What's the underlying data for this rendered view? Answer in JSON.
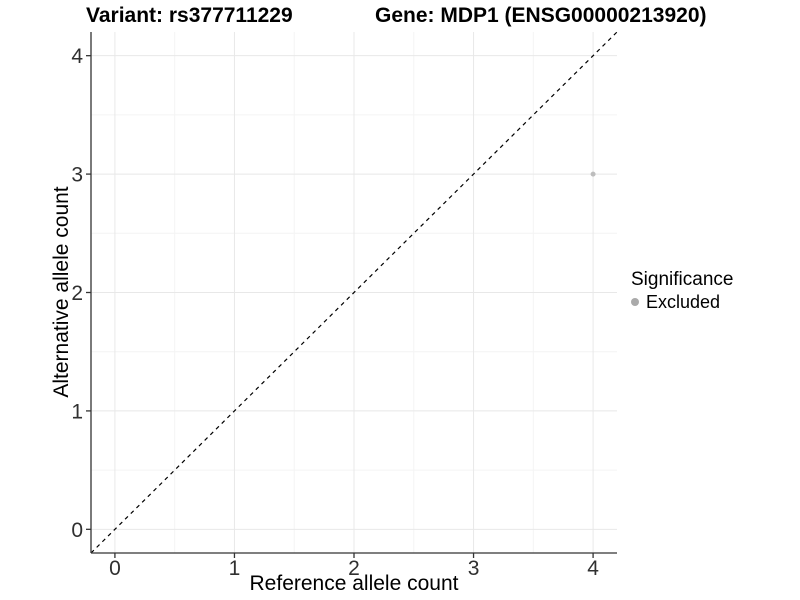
{
  "titles": {
    "left": "Variant: rs377711229",
    "right": "Gene: MDP1 (ENSG00000213920)"
  },
  "legend": {
    "title": "Significance",
    "items": [
      {
        "label": "Excluded",
        "color": "#aaaaaa"
      }
    ]
  },
  "colors": {
    "background": "#ffffff",
    "grid_major": "#e8e8e8",
    "grid_minor": "#f4f4f4",
    "axis_line": "#333333",
    "tick_mark": "#333333",
    "tick_text": "#303030",
    "point": "#bdbdbd",
    "reference_line": "#000000"
  },
  "chart_data": {
    "type": "scatter",
    "title": "Variant: rs377711229 — Gene: MDP1 (ENSG00000213920)",
    "xlabel": "Reference allele count",
    "ylabel": "Alternative allele count",
    "xlim": [
      -0.2,
      4.2
    ],
    "ylim": [
      -0.2,
      4.2
    ],
    "xticks": [
      0,
      1,
      2,
      3,
      4
    ],
    "yticks": [
      0,
      1,
      2,
      3,
      4
    ],
    "xticks_minor": [
      0.5,
      1.5,
      2.5,
      3.5
    ],
    "yticks_minor": [
      0.5,
      1.5,
      2.5,
      3.5
    ],
    "grid": "major+minor",
    "legend_position": "right",
    "series": [
      {
        "name": "Excluded",
        "color": "#bdbdbd",
        "points": [
          {
            "x": 4,
            "y": 3
          }
        ]
      }
    ],
    "reference_line": {
      "type": "identity y=x",
      "from": [
        -0.2,
        -0.2
      ],
      "to": [
        4.2,
        4.2
      ],
      "style": "dashed",
      "color": "#000000"
    }
  }
}
